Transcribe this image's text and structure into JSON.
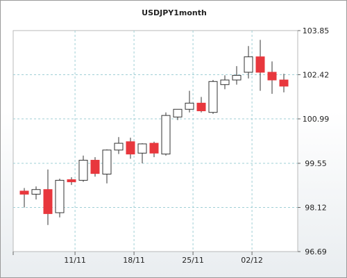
{
  "chart_data": {
    "type": "candlestick",
    "title": "USDJPY1month",
    "xlabel": "",
    "ylabel": "",
    "ylim": [
      96.69,
      103.85
    ],
    "y_ticks": [
      96.69,
      98.12,
      99.55,
      100.99,
      102.42,
      103.85
    ],
    "y_tick_labels": [
      "96.69",
      "98.12",
      "99.55",
      "100.99",
      "102.42",
      "103.85"
    ],
    "x_ticks": [
      {
        "label": "11/11",
        "index": 4.3
      },
      {
        "label": "18/11",
        "index": 9.3
      },
      {
        "label": "25/11",
        "index": 14.3
      },
      {
        "label": "02/12",
        "index": 19.3
      }
    ],
    "grid": true,
    "up_color": "#ffffff",
    "down_color": "#e8373d",
    "candles": [
      {
        "open": 98.65,
        "high": 98.75,
        "low": 98.12,
        "close": 98.55
      },
      {
        "open": 98.55,
        "high": 98.8,
        "low": 98.38,
        "close": 98.7
      },
      {
        "open": 98.7,
        "high": 99.35,
        "low": 97.55,
        "close": 97.92
      },
      {
        "open": 97.95,
        "high": 99.05,
        "low": 97.8,
        "close": 99.0
      },
      {
        "open": 99.02,
        "high": 99.1,
        "low": 98.85,
        "close": 98.95
      },
      {
        "open": 99.0,
        "high": 99.8,
        "low": 98.95,
        "close": 99.65
      },
      {
        "open": 99.65,
        "high": 99.75,
        "low": 99.12,
        "close": 99.22
      },
      {
        "open": 99.2,
        "high": 100.0,
        "low": 98.9,
        "close": 99.98
      },
      {
        "open": 99.98,
        "high": 100.4,
        "low": 99.85,
        "close": 100.2
      },
      {
        "open": 100.25,
        "high": 100.38,
        "low": 99.7,
        "close": 99.85
      },
      {
        "open": 99.88,
        "high": 100.2,
        "low": 99.55,
        "close": 100.18
      },
      {
        "open": 100.2,
        "high": 100.25,
        "low": 99.75,
        "close": 99.88
      },
      {
        "open": 99.85,
        "high": 101.2,
        "low": 99.8,
        "close": 101.1
      },
      {
        "open": 101.05,
        "high": 101.3,
        "low": 100.95,
        "close": 101.3
      },
      {
        "open": 101.3,
        "high": 101.9,
        "low": 101.2,
        "close": 101.5
      },
      {
        "open": 101.5,
        "high": 101.7,
        "low": 101.2,
        "close": 101.25
      },
      {
        "open": 101.2,
        "high": 102.25,
        "low": 101.15,
        "close": 102.2
      },
      {
        "open": 102.1,
        "high": 102.4,
        "low": 101.95,
        "close": 102.25
      },
      {
        "open": 102.25,
        "high": 102.7,
        "low": 102.1,
        "close": 102.4
      },
      {
        "open": 102.5,
        "high": 103.35,
        "low": 102.3,
        "close": 103.0
      },
      {
        "open": 103.0,
        "high": 103.55,
        "low": 101.9,
        "close": 102.5
      },
      {
        "open": 102.5,
        "high": 102.85,
        "low": 101.8,
        "close": 102.25
      },
      {
        "open": 102.25,
        "high": 102.45,
        "low": 101.85,
        "close": 102.05
      }
    ]
  }
}
